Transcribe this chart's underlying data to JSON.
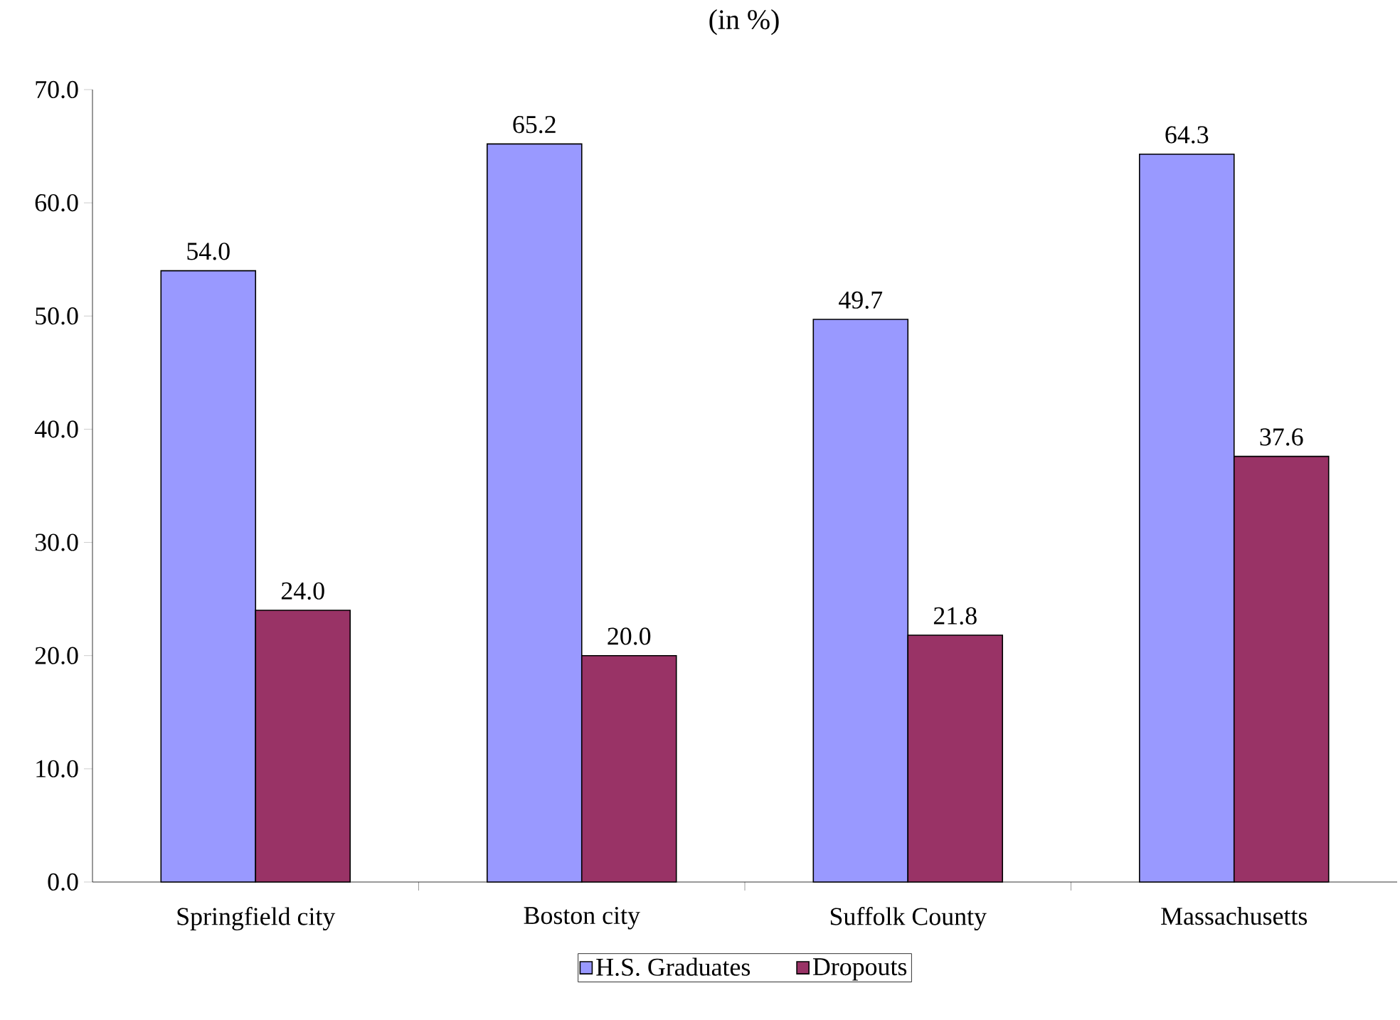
{
  "chart_data": {
    "type": "bar",
    "title": "(in %)",
    "categories": [
      "Springfield city",
      "Boston city",
      "Suffolk County",
      "Massachusetts"
    ],
    "series": [
      {
        "name": "H.S. Graduates",
        "color": "#9999ff",
        "values": [
          54.0,
          65.2,
          49.7,
          64.3
        ],
        "value_labels": [
          "54.0",
          "65.2",
          "49.7",
          "64.3"
        ]
      },
      {
        "name": "Dropouts",
        "color": "#993366",
        "values": [
          24.0,
          20.0,
          21.8,
          37.6
        ],
        "value_labels": [
          "24.0",
          "20.0",
          "21.8",
          "37.6"
        ]
      }
    ],
    "ylim": [
      0,
      70
    ],
    "yticks": [
      {
        "value": 0,
        "label": "0.0"
      },
      {
        "value": 10,
        "label": "10.0"
      },
      {
        "value": 20,
        "label": "20.0"
      },
      {
        "value": 30,
        "label": "30.0"
      },
      {
        "value": 40,
        "label": "40.0"
      },
      {
        "value": 50,
        "label": "50.0"
      },
      {
        "value": 60,
        "label": "60.0"
      },
      {
        "value": 70,
        "label": "70.0"
      }
    ],
    "legend": "bottom"
  }
}
